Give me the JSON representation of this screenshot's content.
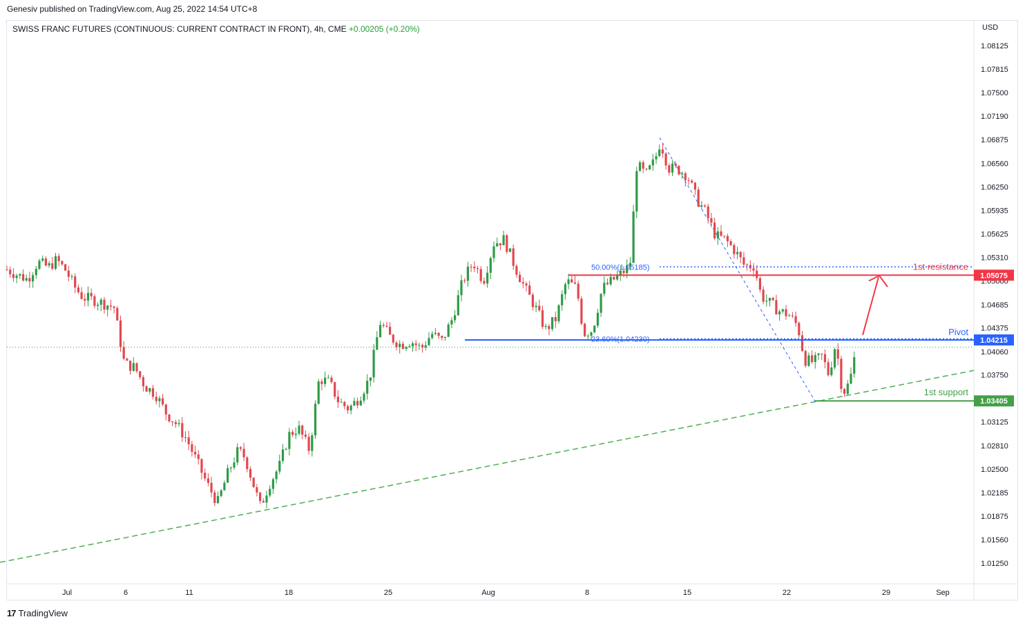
{
  "publisher_line": "Genesiv published on TradingView.com, Aug 25, 2022 14:54 UTC+8",
  "legend": {
    "symbol": "SWISS FRANC FUTURES (CONTINUOUS: CURRENT CONTRACT IN FRONT), 4h, CME",
    "change": "+0.00205 (+0.20%)"
  },
  "currency": "USD",
  "footer_brand": "TradingView",
  "colors": {
    "up": "#2e9b46",
    "down": "#e0484f",
    "resistance": "#f23645",
    "pivot": "#2962ff",
    "support": "#43a047",
    "trend": "#4caf50"
  },
  "chart_data": {
    "type": "candlestick",
    "y_axis_ticks": [
      "1.08125",
      "1.07815",
      "1.07500",
      "1.07190",
      "1.06875",
      "1.06560",
      "1.06250",
      "1.05935",
      "1.05625",
      "1.05310",
      "1.05000",
      "1.04685",
      "1.04375",
      "1.04060",
      "1.03750",
      "1.03125",
      "1.02810",
      "1.02500",
      "1.02185",
      "1.01875",
      "1.01560",
      "1.01250"
    ],
    "ylim": [
      1.011,
      1.084
    ],
    "x_axis_ticks": [
      "Jul",
      "6",
      "11",
      "18",
      "25",
      "Aug",
      "8",
      "15",
      "22",
      "29",
      "Sep"
    ],
    "levels": [
      {
        "name": "1st resistance",
        "value": 1.05075,
        "badge": "1.05075"
      },
      {
        "name": "Pivot",
        "value": 1.04215,
        "badge": "1.04215"
      },
      {
        "name": "1st support",
        "value": 1.03405,
        "badge": "1.03405"
      }
    ],
    "fib_labels": [
      "50.00%(1.05185)",
      "23.60%(1.04230)"
    ],
    "fib_levels": [
      1.05185,
      1.0423
    ],
    "last_price": 1.0412,
    "trendline": {
      "from": [
        0,
        1.0126
      ],
      "to": [
        1410,
        1.0381
      ]
    },
    "close_path": [
      [
        10,
        1.0515
      ],
      [
        25,
        1.0508
      ],
      [
        40,
        1.0502
      ],
      [
        55,
        1.0525
      ],
      [
        70,
        1.0518
      ],
      [
        82,
        1.0528
      ],
      [
        95,
        1.0514
      ],
      [
        108,
        1.0492
      ],
      [
        120,
        1.0478
      ],
      [
        135,
        1.0475
      ],
      [
        150,
        1.047
      ],
      [
        165,
        1.0465
      ],
      [
        172,
        1.043
      ],
      [
        180,
        1.039
      ],
      [
        195,
        1.0385
      ],
      [
        210,
        1.036
      ],
      [
        225,
        1.035
      ],
      [
        240,
        1.0325
      ],
      [
        255,
        1.031
      ],
      [
        270,
        1.029
      ],
      [
        285,
        1.026
      ],
      [
        300,
        1.023
      ],
      [
        315,
        1.0205
      ],
      [
        330,
        1.0245
      ],
      [
        345,
        1.0275
      ],
      [
        355,
        1.0265
      ],
      [
        365,
        1.0235
      ],
      [
        377,
        1.02
      ],
      [
        390,
        1.023
      ],
      [
        405,
        1.0255
      ],
      [
        418,
        1.0295
      ],
      [
        432,
        1.0305
      ],
      [
        448,
        1.0275
      ],
      [
        462,
        1.037
      ],
      [
        477,
        1.0365
      ],
      [
        490,
        1.034
      ],
      [
        505,
        1.033
      ],
      [
        520,
        1.0345
      ],
      [
        535,
        1.037
      ],
      [
        550,
        1.0445
      ],
      [
        565,
        1.0425
      ],
      [
        580,
        1.0415
      ],
      [
        595,
        1.042
      ],
      [
        610,
        1.041
      ],
      [
        625,
        1.043
      ],
      [
        640,
        1.042
      ],
      [
        655,
        1.045
      ],
      [
        670,
        1.05
      ],
      [
        685,
        1.0525
      ],
      [
        700,
        1.05
      ],
      [
        715,
        1.055
      ],
      [
        730,
        1.0555
      ],
      [
        745,
        1.052
      ],
      [
        760,
        1.049
      ],
      [
        775,
        1.0465
      ],
      [
        790,
        1.0435
      ],
      [
        805,
        1.045
      ],
      [
        820,
        1.05
      ],
      [
        835,
        1.049
      ],
      [
        845,
        1.043
      ],
      [
        858,
        1.0435
      ],
      [
        872,
        1.049
      ],
      [
        886,
        1.05
      ],
      [
        900,
        1.051
      ],
      [
        912,
        1.052
      ],
      [
        922,
        1.0655
      ],
      [
        935,
        1.064
      ],
      [
        948,
        1.066
      ],
      [
        956,
        1.0685
      ],
      [
        968,
        1.065
      ],
      [
        982,
        1.0648
      ],
      [
        995,
        1.064
      ],
      [
        1008,
        1.061
      ],
      [
        1022,
        1.059
      ],
      [
        1036,
        1.056
      ],
      [
        1050,
        1.0555
      ],
      [
        1064,
        1.054
      ],
      [
        1078,
        1.052
      ],
      [
        1092,
        1.052
      ],
      [
        1102,
        1.048
      ],
      [
        1115,
        1.047
      ],
      [
        1128,
        1.046
      ],
      [
        1142,
        1.0455
      ],
      [
        1155,
        1.044
      ],
      [
        1165,
        1.0395
      ],
      [
        1178,
        1.0392
      ],
      [
        1190,
        1.04
      ],
      [
        1200,
        1.0375
      ],
      [
        1210,
        1.0418
      ],
      [
        1220,
        1.035
      ],
      [
        1230,
        1.0365
      ],
      [
        1240,
        1.0412
      ]
    ]
  }
}
